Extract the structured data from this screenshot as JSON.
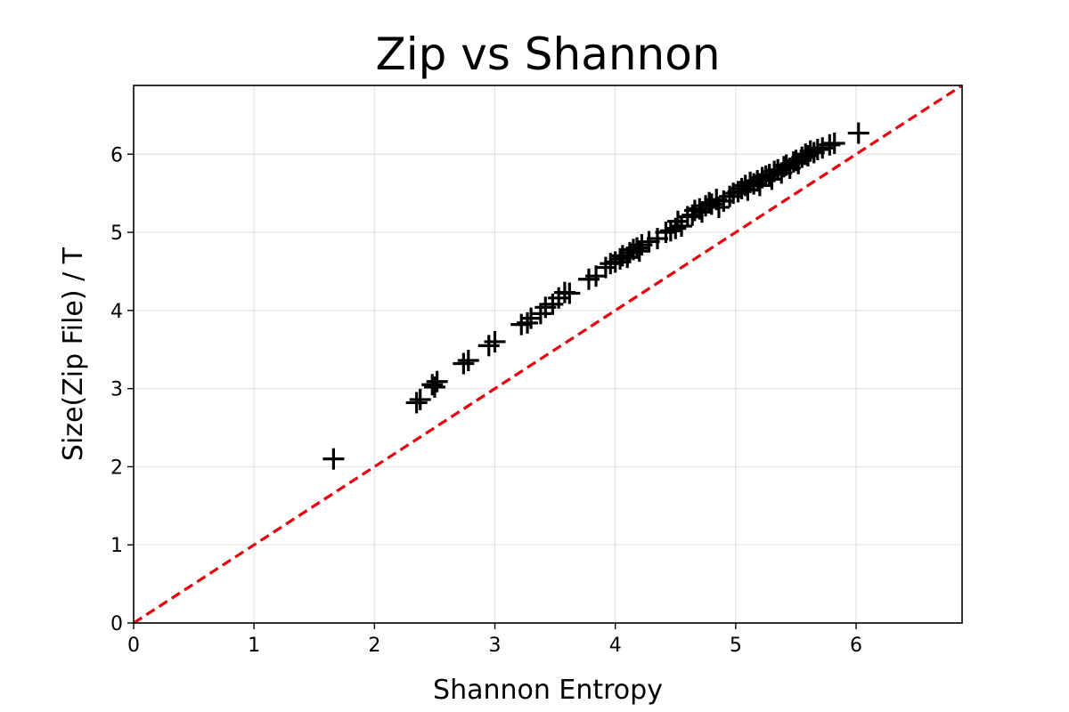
{
  "chart_data": {
    "type": "scatter",
    "title": "Zip vs Shannon",
    "xlabel": "Shannon Entropy",
    "ylabel": "Size(Zip File) / T",
    "xlim": [
      0,
      6.88
    ],
    "ylim": [
      0,
      6.88
    ],
    "xticks": [
      "0",
      "1",
      "2",
      "3",
      "4",
      "5",
      "6"
    ],
    "yticks": [
      "0",
      "1",
      "2",
      "3",
      "4",
      "5",
      "6"
    ],
    "grid": true,
    "marker": "plus",
    "marker_color": "#000000",
    "reference_line": {
      "style": "dashed",
      "color": "#e8000b",
      "slope": 1,
      "intercept": 0
    },
    "series": [
      {
        "points": [
          [
            1.66,
            2.1
          ],
          [
            2.35,
            2.82
          ],
          [
            2.38,
            2.86
          ],
          [
            2.48,
            3.05
          ],
          [
            2.52,
            3.09
          ],
          [
            2.5,
            3.02
          ],
          [
            2.74,
            3.32
          ],
          [
            2.78,
            3.36
          ],
          [
            2.95,
            3.55
          ],
          [
            3.0,
            3.6
          ],
          [
            3.22,
            3.82
          ],
          [
            3.27,
            3.84
          ],
          [
            3.3,
            3.9
          ],
          [
            3.38,
            3.96
          ],
          [
            3.42,
            4.04
          ],
          [
            3.48,
            4.08
          ],
          [
            3.53,
            4.16
          ],
          [
            3.58,
            4.23
          ],
          [
            3.62,
            4.22
          ],
          [
            3.78,
            4.4
          ],
          [
            3.84,
            4.44
          ],
          [
            3.92,
            4.55
          ],
          [
            3.96,
            4.6
          ],
          [
            4.0,
            4.62
          ],
          [
            4.04,
            4.66
          ],
          [
            4.06,
            4.7
          ],
          [
            4.1,
            4.68
          ],
          [
            4.12,
            4.74
          ],
          [
            4.15,
            4.78
          ],
          [
            4.18,
            4.8
          ],
          [
            4.2,
            4.76
          ],
          [
            4.22,
            4.84
          ],
          [
            4.28,
            4.88
          ],
          [
            4.35,
            4.92
          ],
          [
            4.42,
            5.0
          ],
          [
            4.46,
            5.02
          ],
          [
            4.5,
            5.05
          ],
          [
            4.52,
            5.14
          ],
          [
            4.55,
            5.08
          ],
          [
            4.6,
            5.2
          ],
          [
            4.64,
            5.22
          ],
          [
            4.66,
            5.28
          ],
          [
            4.7,
            5.3
          ],
          [
            4.72,
            5.26
          ],
          [
            4.75,
            5.34
          ],
          [
            4.78,
            5.38
          ],
          [
            4.8,
            5.36
          ],
          [
            4.84,
            5.42
          ],
          [
            4.86,
            5.32
          ],
          [
            4.9,
            5.4
          ],
          [
            4.95,
            5.46
          ],
          [
            4.98,
            5.5
          ],
          [
            5.02,
            5.52
          ],
          [
            5.05,
            5.56
          ],
          [
            5.08,
            5.6
          ],
          [
            5.1,
            5.54
          ],
          [
            5.12,
            5.64
          ],
          [
            5.15,
            5.62
          ],
          [
            5.18,
            5.66
          ],
          [
            5.2,
            5.6
          ],
          [
            5.22,
            5.7
          ],
          [
            5.25,
            5.72
          ],
          [
            5.28,
            5.74
          ],
          [
            5.3,
            5.68
          ],
          [
            5.32,
            5.78
          ],
          [
            5.35,
            5.8
          ],
          [
            5.38,
            5.76
          ],
          [
            5.4,
            5.84
          ],
          [
            5.42,
            5.86
          ],
          [
            5.45,
            5.82
          ],
          [
            5.48,
            5.9
          ],
          [
            5.5,
            5.92
          ],
          [
            5.52,
            5.88
          ],
          [
            5.55,
            5.96
          ],
          [
            5.58,
            6.0
          ],
          [
            5.6,
            5.98
          ],
          [
            5.62,
            6.04
          ],
          [
            5.65,
            6.02
          ],
          [
            5.68,
            6.06
          ],
          [
            5.72,
            6.08
          ],
          [
            5.78,
            6.12
          ],
          [
            5.82,
            6.14
          ],
          [
            6.02,
            6.27
          ]
        ]
      }
    ]
  }
}
